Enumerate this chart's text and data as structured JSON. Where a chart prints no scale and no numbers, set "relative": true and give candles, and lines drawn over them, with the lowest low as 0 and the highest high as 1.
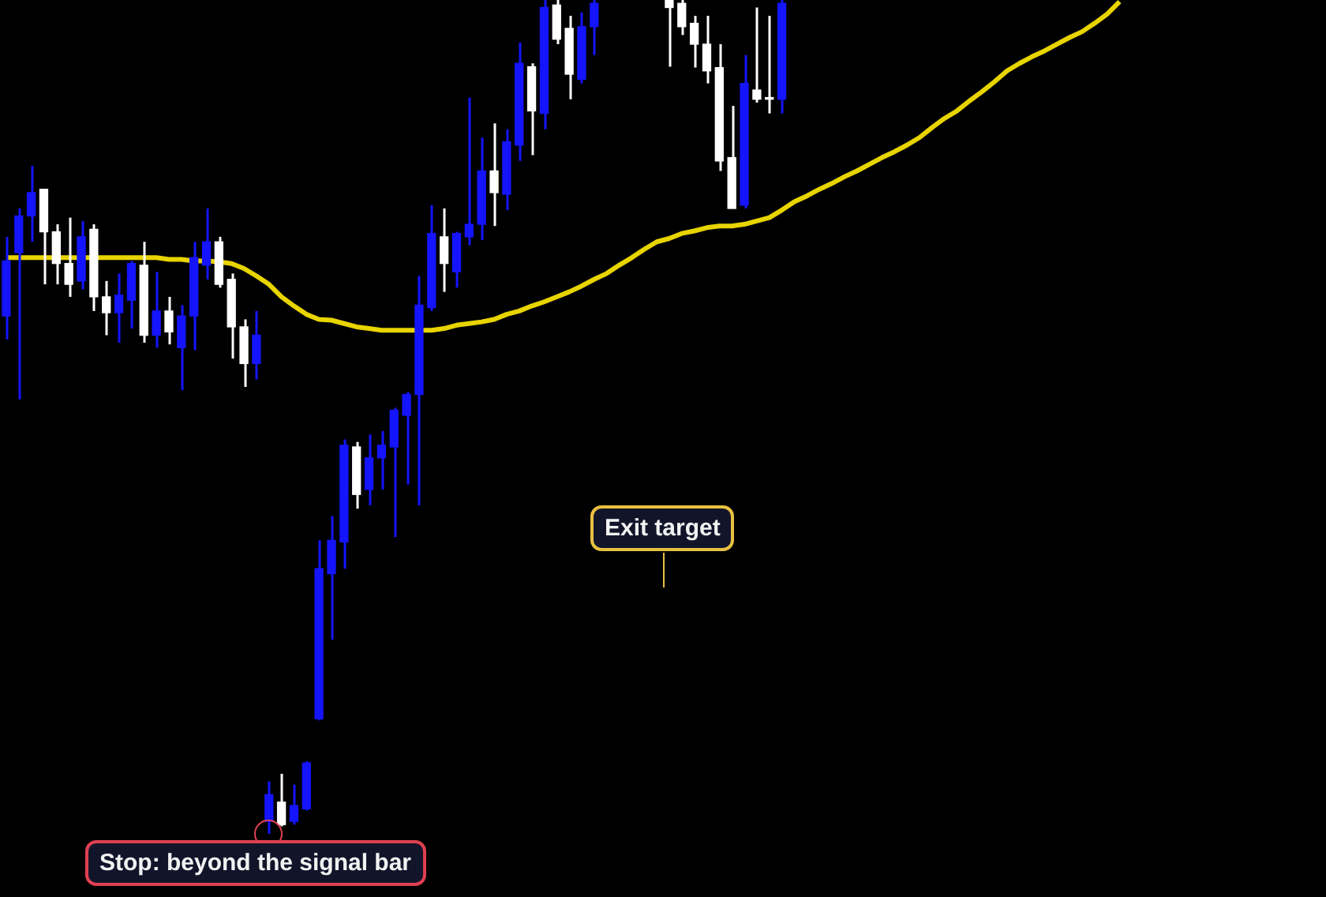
{
  "chart_data": {
    "type": "candlestick",
    "relative": true,
    "categories": [
      null,
      null,
      null,
      null,
      null,
      null,
      null,
      null,
      null,
      null,
      null,
      null,
      null,
      null,
      null,
      null,
      null,
      null,
      null,
      null,
      null,
      null,
      null,
      null,
      null,
      null,
      null,
      null,
      null,
      null,
      null,
      null,
      null,
      null,
      null,
      null,
      null,
      null,
      null,
      null,
      null,
      null,
      null,
      null,
      null,
      null,
      null,
      null,
      null,
      null,
      null,
      null,
      null,
      null,
      null,
      null,
      null,
      null,
      null,
      null,
      null,
      null,
      null,
      null,
      null,
      null,
      null,
      null,
      null,
      null,
      null,
      null,
      null,
      null,
      null,
      null,
      null,
      null,
      null,
      null,
      null,
      null,
      null,
      null,
      null,
      null,
      null,
      null,
      null,
      null,
      null,
      null,
      null,
      null,
      null,
      null,
      null,
      null,
      null,
      null,
      null,
      null,
      null,
      null,
      null,
      null
    ],
    "ohlc": [
      [
        0.621,
        0.716,
        0.593,
        0.687
      ],
      [
        0.697,
        0.75,
        0.521,
        0.741
      ],
      [
        0.741,
        0.801,
        0.71,
        0.769
      ],
      [
        0.773,
        0.773,
        0.659,
        0.722
      ],
      [
        0.722,
        0.731,
        0.659,
        0.684
      ],
      [
        0.684,
        0.739,
        0.644,
        0.659
      ],
      [
        0.663,
        0.735,
        0.653,
        0.716
      ],
      [
        0.725,
        0.731,
        0.627,
        0.644
      ],
      [
        0.644,
        0.663,
        0.598,
        0.625
      ],
      [
        0.625,
        0.672,
        0.589,
        0.646
      ],
      [
        0.64,
        0.687,
        0.606,
        0.684
      ],
      [
        0.682,
        0.71,
        0.589,
        0.598
      ],
      [
        0.598,
        0.674,
        0.583,
        0.627
      ],
      [
        0.627,
        0.644,
        0.587,
        0.602
      ],
      [
        0.583,
        0.634,
        0.532,
        0.621
      ],
      [
        0.621,
        0.71,
        0.58,
        0.691
      ],
      [
        0.682,
        0.75,
        0.665,
        0.71
      ],
      [
        0.71,
        0.716,
        0.655,
        0.659
      ],
      [
        0.665,
        0.672,
        0.57,
        0.608
      ],
      [
        0.608,
        0.617,
        0.536,
        0.564
      ],
      [
        0.564,
        0.627,
        0.545,
        0.598
      ],
      [
        0.015,
        0.063,
        0,
        0.047
      ],
      [
        0.038,
        0.072,
        0.009,
        0.011
      ],
      [
        0.015,
        0.059,
        0.011,
        0.034
      ],
      [
        0.03,
        0.087,
        0.028,
        0.085
      ],
      [
        0.138,
        0.352,
        0.136,
        0.318
      ],
      [
        0.312,
        0.381,
        0.233,
        0.352
      ],
      [
        0.35,
        0.473,
        0.318,
        0.466
      ],
      [
        0.464,
        0.47,
        0.39,
        0.407
      ],
      [
        0.413,
        0.479,
        0.394,
        0.451
      ],
      [
        0.451,
        0.483,
        0.413,
        0.466
      ],
      [
        0.464,
        0.511,
        0.356,
        0.508
      ],
      [
        0.502,
        0.53,
        0.419,
        0.527
      ],
      [
        0.527,
        0.669,
        0.394,
        0.634
      ],
      [
        0.631,
        0.754,
        0.627,
        0.72
      ],
      [
        0.716,
        0.75,
        0.65,
        0.684
      ],
      [
        0.674,
        0.722,
        0.655,
        0.72
      ],
      [
        0.716,
        0.883,
        0.706,
        0.731
      ],
      [
        0.731,
        0.835,
        0.712,
        0.795
      ],
      [
        0.795,
        0.852,
        0.729,
        0.769
      ],
      [
        0.767,
        0.845,
        0.748,
        0.83
      ],
      [
        0.826,
        0.949,
        0.807,
        0.924
      ],
      [
        0.92,
        0.924,
        0.814,
        0.867
      ],
      [
        0.864,
        1,
        0.845,
        0.991
      ],
      [
        0.994,
        1,
        0.947,
        0.953
      ],
      [
        0.966,
        0.981,
        0.881,
        0.911
      ],
      [
        0.905,
        0.985,
        0.9,
        0.968
      ],
      [
        0.968,
        1,
        0.934,
        0.996
      ],
      null,
      null,
      null,
      null,
      null,
      [
        1,
        1,
        0.92,
        0.991
      ],
      [
        0.996,
        1,
        0.958,
        0.968
      ],
      [
        0.972,
        0.981,
        0.919,
        0.947
      ],
      [
        0.947,
        0.981,
        0.9,
        0.915
      ],
      [
        0.919,
        0.947,
        0.795,
        0.807
      ],
      [
        0.811,
        0.873,
        0.75,
        0.75
      ],
      [
        0.754,
        0.934,
        0.75,
        0.9
      ],
      [
        0.892,
        0.991,
        0.877,
        0.881
      ],
      [
        0.883,
        0.981,
        0.864,
        0.881
      ],
      [
        0.881,
        1,
        0.864,
        0.996
      ],
      null,
      null,
      null,
      null,
      null,
      null,
      null,
      null,
      null,
      null,
      null,
      null,
      null,
      null,
      null,
      null,
      null,
      null,
      null,
      null,
      null,
      null,
      null,
      null,
      null,
      null,
      null,
      null,
      null,
      null,
      null,
      null,
      null,
      null,
      null,
      null,
      null,
      null,
      null,
      null,
      null,
      null,
      null
    ],
    "colors": [
      "#1414ff",
      "#1414ff",
      "#1414ff",
      "#ffffff",
      "#ffffff",
      "#ffffff",
      "#1414ff",
      "#ffffff",
      "#ffffff",
      "#1414ff",
      "#1414ff",
      "#ffffff",
      "#1414ff",
      "#ffffff",
      "#1414ff",
      "#1414ff",
      "#1414ff",
      "#ffffff",
      "#ffffff",
      "#ffffff",
      "#1414ff",
      "#1414ff",
      "#ffffff",
      "#1414ff",
      "#1414ff",
      "#1414ff",
      "#1414ff",
      "#1414ff",
      "#ffffff",
      "#1414ff",
      "#1414ff",
      "#1414ff",
      "#1414ff",
      "#1414ff",
      "#1414ff",
      "#ffffff",
      "#1414ff",
      "#1414ff",
      "#1414ff",
      "#ffffff",
      "#1414ff",
      "#1414ff",
      "#ffffff",
      "#1414ff",
      "#ffffff",
      "#ffffff",
      "#1414ff",
      "#1414ff",
      null,
      null,
      null,
      null,
      null,
      "#ffffff",
      "#ffffff",
      "#ffffff",
      "#ffffff",
      "#ffffff",
      "#ffffff",
      "#1414ff",
      "#ffffff",
      "#ffffff",
      "#1414ff",
      null,
      null,
      null,
      null,
      null,
      null,
      null,
      null,
      null,
      null,
      null,
      null,
      null,
      null,
      null,
      null,
      null,
      null,
      null,
      null,
      null,
      null,
      null,
      null,
      null,
      null,
      null,
      null,
      null,
      null,
      null,
      null,
      null,
      null,
      null,
      null,
      null,
      null,
      null,
      null,
      null,
      null,
      null
    ],
    "series": [
      {
        "type": "line",
        "color": "#e8d400",
        "values": [
          0.691,
          0.691,
          0.691,
          0.691,
          0.691,
          0.691,
          0.691,
          0.691,
          0.691,
          0.691,
          0.691,
          0.691,
          0.691,
          0.689,
          0.689,
          0.687,
          0.687,
          0.686,
          0.684,
          0.678,
          0.669,
          0.659,
          0.644,
          0.633,
          0.623,
          0.617,
          0.616,
          0.612,
          0.608,
          0.606,
          0.604,
          0.604,
          0.604,
          0.604,
          0.604,
          0.606,
          0.61,
          0.612,
          0.614,
          0.617,
          0.623,
          0.627,
          0.633,
          0.638,
          0.644,
          0.65,
          0.657,
          0.665,
          0.672,
          0.682,
          0.691,
          0.701,
          0.71,
          0.714,
          0.72,
          0.723,
          0.727,
          0.729,
          0.729,
          0.731,
          0.735,
          0.739,
          0.748,
          0.758,
          0.765,
          0.773,
          0.78,
          0.788,
          0.795,
          0.803,
          0.811,
          0.818,
          0.826,
          0.835,
          0.847,
          0.858,
          0.867,
          0.879,
          0.89,
          0.902,
          0.915,
          0.924,
          0.932,
          0.939,
          0.947,
          0.955,
          0.962,
          0.972,
          0.983,
          0.998,
          null,
          null,
          null,
          null,
          null,
          null,
          null,
          null,
          null,
          null,
          null,
          null,
          null,
          null,
          null,
          null
        ]
      }
    ],
    "annotations": [
      "Exit target",
      "Stop: beyond the signal bar"
    ]
  }
}
